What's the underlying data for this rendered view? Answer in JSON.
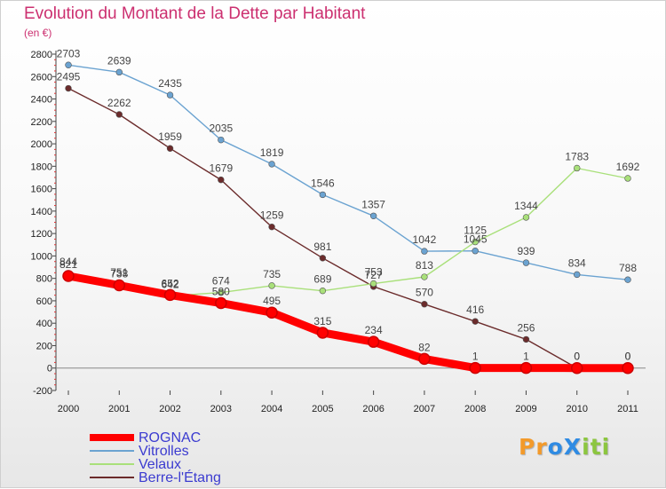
{
  "header": {
    "title": "Evolution du Montant de la Dette par Habitant",
    "unit": "(en €)"
  },
  "colors": {
    "title": "#cc3070",
    "legend_text": "#3b3bd0"
  },
  "logo": {
    "text": "ProXiti",
    "letter_colors": [
      "#f39a2a",
      "#f39a2a",
      "#2f8be3",
      "#2f8be3",
      "#8cc63f",
      "#8cc63f",
      "#8cc63f"
    ]
  },
  "chart_data": {
    "type": "line",
    "title": "Evolution du Montant de la Dette par Habitant",
    "ylabel": "(en €)",
    "xlabel": "",
    "x": [
      "2000",
      "2001",
      "2002",
      "2003",
      "2004",
      "2005",
      "2006",
      "2007",
      "2008",
      "2009",
      "2010",
      "2011"
    ],
    "ylim": [
      -200,
      2800
    ],
    "yticks": [
      -200,
      0,
      200,
      400,
      600,
      800,
      1000,
      1200,
      1400,
      1600,
      1800,
      2000,
      2200,
      2400,
      2600,
      2800
    ],
    "grid": false,
    "legend_position": "bottom-left",
    "series": [
      {
        "name": "ROGNAC",
        "color": "#ff0000",
        "values": [
          821,
          738,
          652,
          580,
          495,
          315,
          234,
          82,
          1,
          1,
          0,
          0
        ],
        "labels": [
          "821",
          "738",
          "652",
          "580",
          "495",
          "315",
          "234",
          "82",
          "1",
          "1",
          "0",
          "0"
        ]
      },
      {
        "name": "Vitrolles",
        "color": "#6ba3d1",
        "values": [
          2703,
          2639,
          2435,
          2035,
          1819,
          1546,
          1357,
          1042,
          1045,
          939,
          834,
          788
        ],
        "labels": [
          "2703",
          "2639",
          "2435",
          "2035",
          "1819",
          "1546",
          "1357",
          "1042",
          "1045",
          "939",
          "834",
          "788"
        ]
      },
      {
        "name": "Velaux",
        "color": "#a9e07a",
        "values": [
          844,
          751,
          642,
          674,
          735,
          689,
          753,
          813,
          1125,
          1344,
          1783,
          1692
        ],
        "labels": [
          "844",
          "751",
          "642",
          "674",
          "735",
          "689",
          "753",
          "813",
          "1125",
          "1344",
          "1783",
          "1692"
        ]
      },
      {
        "name": "Berre-l'Étang",
        "color": "#6b2b2b",
        "values": [
          2495,
          2262,
          1959,
          1679,
          1259,
          981,
          727,
          570,
          416,
          256,
          0,
          0
        ],
        "labels": [
          "2495",
          "2262",
          "1959",
          "1679",
          "1259",
          "981",
          "727",
          "570",
          "416",
          "256",
          "0",
          "0"
        ]
      }
    ]
  }
}
